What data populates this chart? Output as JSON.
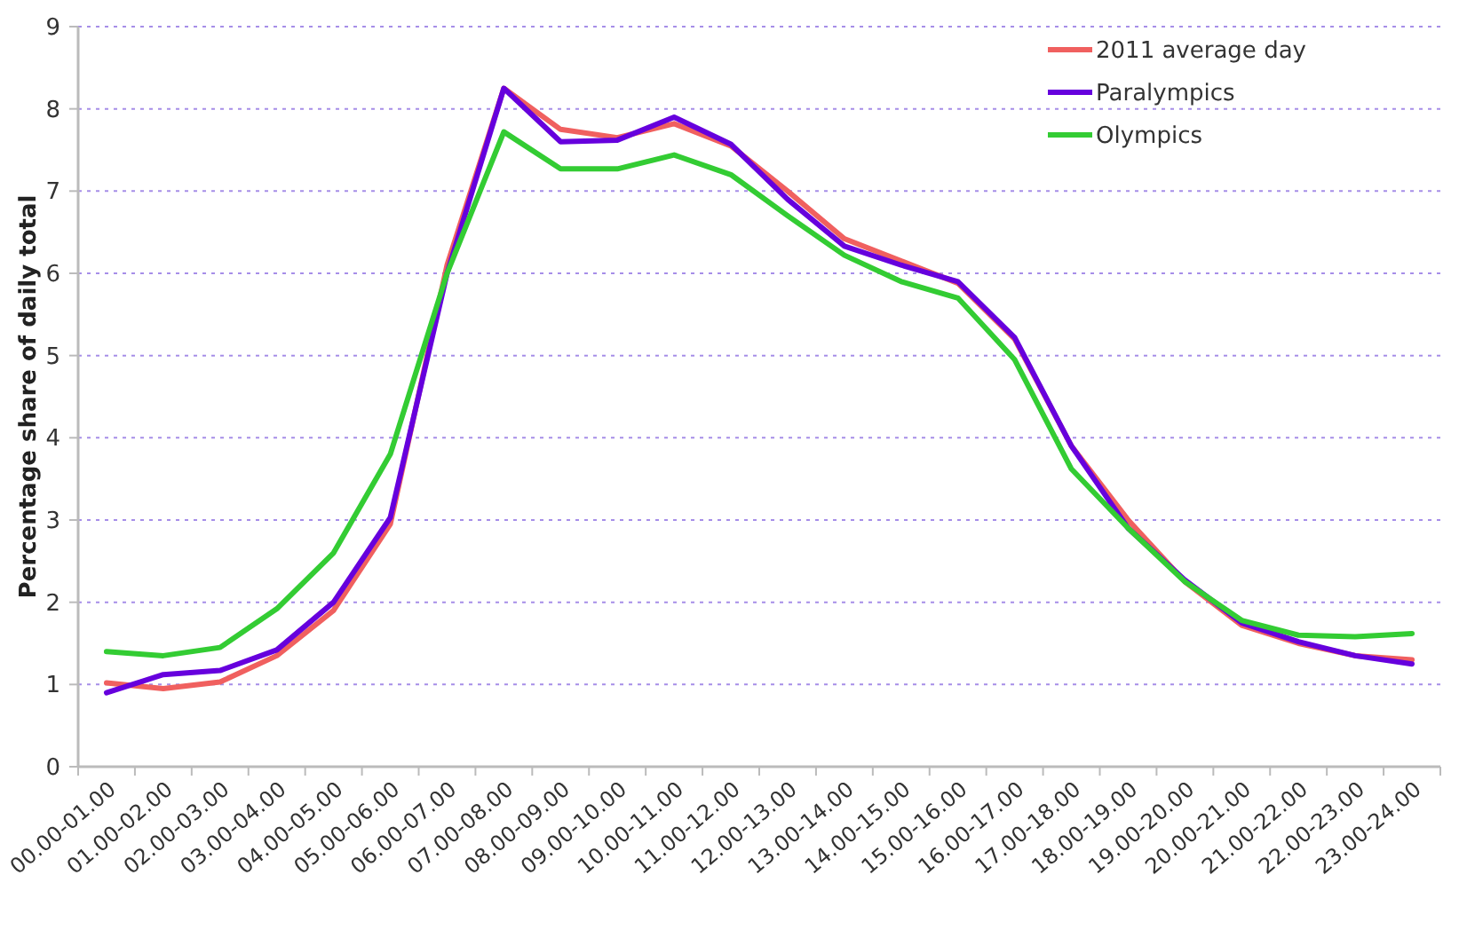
{
  "chart_data": {
    "type": "line",
    "ylabel": "Percentage share of daily total",
    "categories": [
      "00.00-01.00",
      "01.00-02.00",
      "02.00-03.00",
      "03.00-04.00",
      "04.00-05.00",
      "05.00-06.00",
      "06.00-07.00",
      "07.00-08.00",
      "08.00-09.00",
      "09.00-10.00",
      "10.00-11.00",
      "11.00-12.00",
      "12.00-13.00",
      "13.00-14.00",
      "14.00-15.00",
      "15.00-16.00",
      "16.00-17.00",
      "17.00-18.00",
      "18.00-19.00",
      "19.00-20.00",
      "20.00-21.00",
      "21.00-22.00",
      "22.00-23.00",
      "23.00-24.00"
    ],
    "series": [
      {
        "name": "2011 average day",
        "color": "#f0605f",
        "values": [
          1.02,
          0.95,
          1.03,
          1.35,
          1.9,
          2.95,
          6.1,
          8.25,
          7.75,
          7.65,
          7.82,
          7.55,
          7.0,
          6.42,
          6.15,
          5.88,
          5.2,
          3.9,
          3.0,
          2.25,
          1.72,
          1.5,
          1.35,
          1.3
        ]
      },
      {
        "name": "Paralympics",
        "color": "#6600dd",
        "values": [
          0.9,
          1.12,
          1.17,
          1.42,
          2.0,
          3.03,
          6.0,
          8.25,
          7.6,
          7.62,
          7.9,
          7.57,
          6.9,
          6.33,
          6.1,
          5.9,
          5.22,
          3.9,
          2.9,
          2.27,
          1.75,
          1.52,
          1.35,
          1.25
        ]
      },
      {
        "name": "Olympics",
        "color": "#33cc33",
        "values": [
          1.4,
          1.35,
          1.45,
          1.92,
          2.6,
          3.8,
          6.0,
          7.72,
          7.27,
          7.27,
          7.44,
          7.2,
          6.7,
          6.22,
          5.9,
          5.7,
          4.95,
          3.62,
          2.9,
          2.25,
          1.78,
          1.6,
          1.58,
          1.62
        ]
      }
    ],
    "ylim": [
      0,
      9
    ],
    "yticks": [
      0,
      1,
      2,
      3,
      4,
      5,
      6,
      7,
      8,
      9
    ],
    "grid": "y",
    "legend": "top right",
    "line_style": "solid",
    "marker": "none"
  }
}
